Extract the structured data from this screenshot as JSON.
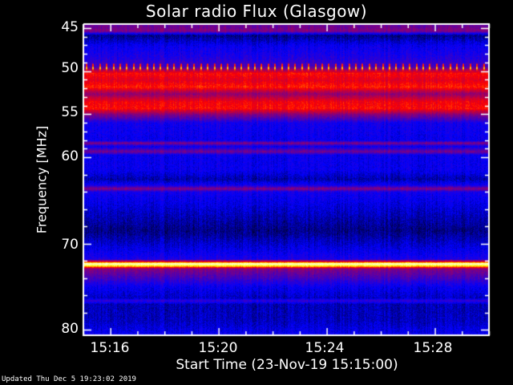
{
  "chart_data": {
    "type": "heatmap",
    "title": "Solar radio Flux (Glasgow)",
    "xlabel": "Start Time (23-Nov-19 15:15:00)",
    "ylabel": "Frequency [MHz]",
    "x_ticks": [
      "15:16",
      "15:20",
      "15:24",
      "15:28"
    ],
    "x_range": [
      "15:15",
      "15:30"
    ],
    "y_ticks": [
      "45",
      "50",
      "55",
      "60",
      "70",
      "80"
    ],
    "y_range": [
      44.5,
      80.5
    ],
    "y_reversed": true,
    "colormap": [
      "#000000",
      "#0000ff",
      "#800080",
      "#ff0000",
      "#ffff00",
      "#ffffff"
    ],
    "band_profile": [
      {
        "mhz": 44.5,
        "intensity": 0.35
      },
      {
        "mhz": 45.3,
        "intensity": 0.4
      },
      {
        "mhz": 45.8,
        "intensity": 0.1
      },
      {
        "mhz": 47.0,
        "intensity": 0.2
      },
      {
        "mhz": 48.5,
        "intensity": 0.25
      },
      {
        "mhz": 49.4,
        "intensity": 0.3
      },
      {
        "mhz": 50.2,
        "intensity": 0.6
      },
      {
        "mhz": 51.0,
        "intensity": 0.55
      },
      {
        "mhz": 51.8,
        "intensity": 0.62
      },
      {
        "mhz": 52.6,
        "intensity": 0.42
      },
      {
        "mhz": 53.5,
        "intensity": 0.58
      },
      {
        "mhz": 54.3,
        "intensity": 0.6
      },
      {
        "mhz": 55.0,
        "intensity": 0.4
      },
      {
        "mhz": 56.0,
        "intensity": 0.22
      },
      {
        "mhz": 58.0,
        "intensity": 0.2
      },
      {
        "mhz": 58.3,
        "intensity": 0.4
      },
      {
        "mhz": 58.7,
        "intensity": 0.2
      },
      {
        "mhz": 59.3,
        "intensity": 0.38
      },
      {
        "mhz": 59.7,
        "intensity": 0.2
      },
      {
        "mhz": 61.5,
        "intensity": 0.2
      },
      {
        "mhz": 62.5,
        "intensity": 0.13
      },
      {
        "mhz": 63.2,
        "intensity": 0.22
      },
      {
        "mhz": 63.6,
        "intensity": 0.4
      },
      {
        "mhz": 64.0,
        "intensity": 0.22
      },
      {
        "mhz": 66.5,
        "intensity": 0.15
      },
      {
        "mhz": 68.5,
        "intensity": 0.1
      },
      {
        "mhz": 70.5,
        "intensity": 0.18
      },
      {
        "mhz": 71.8,
        "intensity": 0.24
      },
      {
        "mhz": 72.1,
        "intensity": 0.6
      },
      {
        "mhz": 72.3,
        "intensity": 1.0
      },
      {
        "mhz": 72.6,
        "intensity": 0.75
      },
      {
        "mhz": 72.9,
        "intensity": 0.4
      },
      {
        "mhz": 74.0,
        "intensity": 0.3
      },
      {
        "mhz": 75.0,
        "intensity": 0.2
      },
      {
        "mhz": 76.3,
        "intensity": 0.15
      },
      {
        "mhz": 76.6,
        "intensity": 0.28
      },
      {
        "mhz": 77.0,
        "intensity": 0.14
      },
      {
        "mhz": 79.0,
        "intensity": 0.15
      },
      {
        "mhz": 80.5,
        "intensity": 0.2
      }
    ],
    "periodic_spikes_mhz": 49.6,
    "grid": false
  },
  "footer": {
    "updated": "Updated Thu Dec  5 19:23:02 2019"
  }
}
